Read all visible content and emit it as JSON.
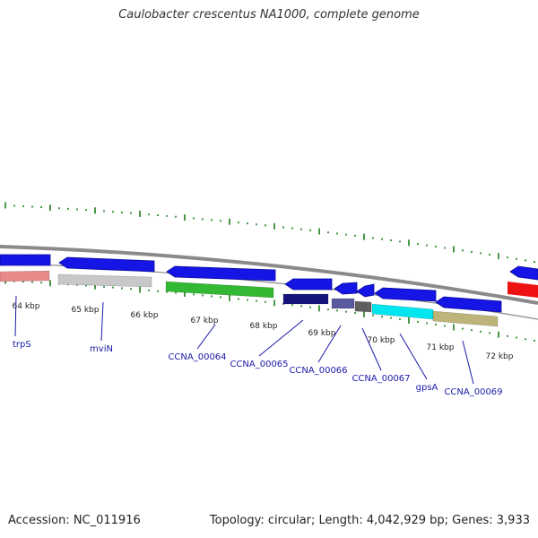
{
  "title": "Caulobacter crescentus NA1000, complete genome",
  "accession": "Accession: NC_011916",
  "summary": "Topology: circular; Length: 4,042,929 bp; Genes: 3,933",
  "colors": {
    "backbone": "#8a8a8a",
    "forward_arrow": "#1515e6",
    "tick_green": "#1a7f1a",
    "gene_label": "#1a1aa8"
  },
  "kbp_labels": [
    "64 kbp",
    "65 kbp",
    "66 kbp",
    "67 kbp",
    "68 kbp",
    "69 kbp",
    "70 kbp",
    "71 kbp",
    "72 kbp"
  ],
  "genes": [
    {
      "name": "trpS",
      "color": "#e88a8a"
    },
    {
      "name": "mviN",
      "color": "#c8c8c8"
    },
    {
      "name": "CCNA_00064",
      "color": "#33b833"
    },
    {
      "name": "CCNA_00065",
      "color": "#14147a"
    },
    {
      "name": "CCNA_00066",
      "color": "#5a5aa0"
    },
    {
      "name": "CCNA_00067",
      "color": "#5f5f5f"
    },
    {
      "name": "gpsA",
      "color": "#00e5ee"
    },
    {
      "name": "CCNA_00069",
      "color": "#bdb47a"
    }
  ],
  "right_edge_gene_color": "#ee1111"
}
